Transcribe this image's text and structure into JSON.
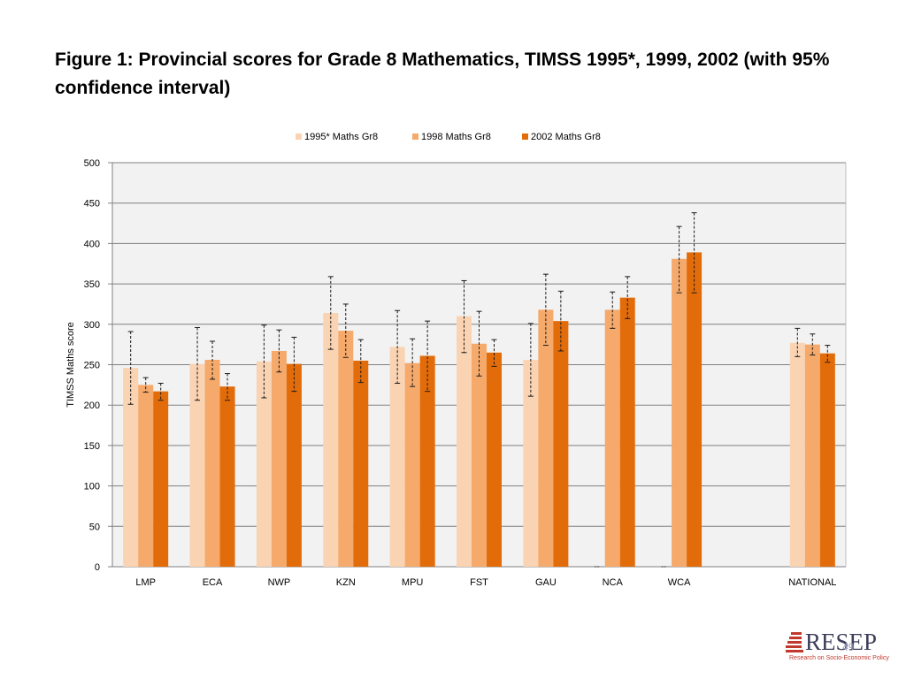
{
  "title": "Figure 1: Provincial scores for Grade 8 Mathematics, TIMSS 1995*, 1999, 2002 (with 95% confidence interval)",
  "logo": {
    "word": "RESEP",
    "tagline": "Research on Socio-Economic Policy"
  },
  "slide_number": "49",
  "colors": {
    "s1995": "#fad3b3",
    "s1998": "#f5a96b",
    "s2002": "#e36c0a",
    "grid": "#808080",
    "plot_bg": "#f2f2f2"
  },
  "chart_data": {
    "type": "bar",
    "title": "",
    "xlabel": "",
    "ylabel": "TIMSS Maths score",
    "ylim": [
      0,
      500
    ],
    "yticks": [
      0,
      50,
      100,
      150,
      200,
      250,
      300,
      350,
      400,
      450,
      500
    ],
    "grid": true,
    "legend_position": "top",
    "categories": [
      "LMP",
      "ECA",
      "NWP",
      "KZN",
      "MPU",
      "FST",
      "GAU",
      "NCA",
      "WCA",
      "",
      "NATIONAL"
    ],
    "series": [
      {
        "name": "1995* Maths Gr8",
        "color": "#fad3b3",
        "values": [
          246,
          251,
          254,
          314,
          272,
          310,
          256,
          0,
          0,
          null,
          277
        ],
        "ci_low": [
          201,
          206,
          209,
          269,
          227,
          265,
          211,
          0,
          0,
          null,
          260
        ],
        "ci_high": [
          291,
          296,
          299,
          359,
          317,
          354,
          301,
          0,
          0,
          null,
          295
        ]
      },
      {
        "name": "1998 Maths Gr8",
        "color": "#f5a96b",
        "values": [
          225,
          256,
          267,
          292,
          252,
          276,
          318,
          318,
          381,
          null,
          275
        ],
        "ci_low": [
          216,
          232,
          241,
          259,
          223,
          236,
          274,
          295,
          339,
          null,
          262
        ],
        "ci_high": [
          234,
          279,
          293,
          325,
          282,
          316,
          362,
          340,
          421,
          null,
          288
        ]
      },
      {
        "name": "2002 Maths Gr8",
        "color": "#e36c0a",
        "values": [
          217,
          223,
          251,
          255,
          261,
          265,
          304,
          333,
          389,
          null,
          264
        ],
        "ci_low": [
          206,
          206,
          217,
          228,
          217,
          248,
          267,
          307,
          339,
          null,
          253
        ],
        "ci_high": [
          227,
          239,
          284,
          281,
          304,
          281,
          341,
          359,
          438,
          null,
          274
        ]
      }
    ]
  }
}
